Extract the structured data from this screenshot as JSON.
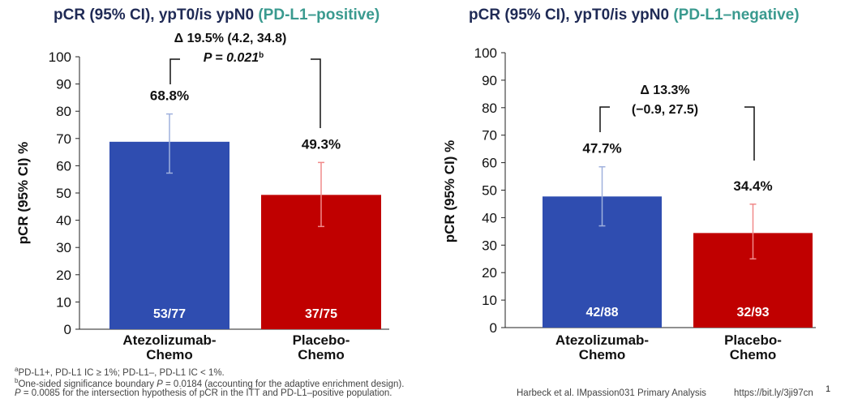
{
  "chart_data": [
    {
      "type": "bar",
      "title": "pCR (95% CI), ypT0/is ypN0",
      "title_qualifier": "(PD-L1–positive)",
      "ylabel": "pCR (95% CI) %",
      "ylim": [
        0,
        100
      ],
      "yticks": [
        "0",
        "10",
        "20",
        "30",
        "40",
        "50",
        "60",
        "70",
        "80",
        "90",
        "100"
      ],
      "categories": [
        "Atezolizumab-Chemo",
        "Placebo-Chemo"
      ],
      "category_lines": [
        [
          "Atezolizumab-",
          "Chemo"
        ],
        [
          "Placebo-",
          "Chemo"
        ]
      ],
      "values": [
        68.8,
        49.3
      ],
      "value_labels": [
        "68.8%",
        "49.3%"
      ],
      "ci_low": [
        57.3,
        37.7
      ],
      "ci_high": [
        79.0,
        61.2
      ],
      "counts": [
        "53/77",
        "37/75"
      ],
      "colors": [
        "#2f4db0",
        "#c00000"
      ],
      "ci_colors": [
        "#9fb0dd",
        "#f08a8a"
      ],
      "annotation_lines": [
        "Δ 19.5% (4.2, 34.8)",
        "P = 0.021"
      ],
      "annotation_sup": "b"
    },
    {
      "type": "bar",
      "title": "pCR (95% CI), ypT0/is ypN0",
      "title_qualifier": "(PD-L1–negative)",
      "ylabel": "pCR (95% CI) %",
      "ylim": [
        0,
        100
      ],
      "yticks": [
        "0",
        "10",
        "20",
        "30",
        "40",
        "50",
        "60",
        "70",
        "80",
        "90",
        "100"
      ],
      "categories": [
        "Atezolizumab-Chemo",
        "Placebo-Chemo"
      ],
      "category_lines": [
        [
          "Atezolizumab-",
          "Chemo"
        ],
        [
          "Placebo-",
          "Chemo"
        ]
      ],
      "values": [
        47.7,
        34.4
      ],
      "value_labels": [
        "47.7%",
        "34.4%"
      ],
      "ci_low": [
        37.0,
        25.0
      ],
      "ci_high": [
        58.5,
        44.9
      ],
      "counts": [
        "42/88",
        "32/93"
      ],
      "colors": [
        "#2f4db0",
        "#c00000"
      ],
      "ci_colors": [
        "#9fb0dd",
        "#f08a8a"
      ],
      "annotation_lines": [
        "Δ 13.3%",
        "(−0.9, 27.5)"
      ],
      "annotation_sup": ""
    }
  ],
  "footnotes": {
    "a_marker": "a",
    "a_text": "PD-L1+, PD-L1 IC ≥ 1%; PD-L1–, PD-L1 IC < 1%.",
    "b_marker": "b",
    "b_text_pre": "One-sided significance boundary ",
    "b_text_p": "P",
    "b_text_post": " = 0.0184 (accounting for the adaptive enrichment design).",
    "c_text_p": "P",
    "c_text_post": " = 0.0085 for the intersection hypothesis of  pCR in the ITT and PD-L1–positive population."
  },
  "credit": "Harbeck et al. IMpassion031 Primary Analysis",
  "link": "https://bit.ly/3ji97cn",
  "page_number": "1"
}
